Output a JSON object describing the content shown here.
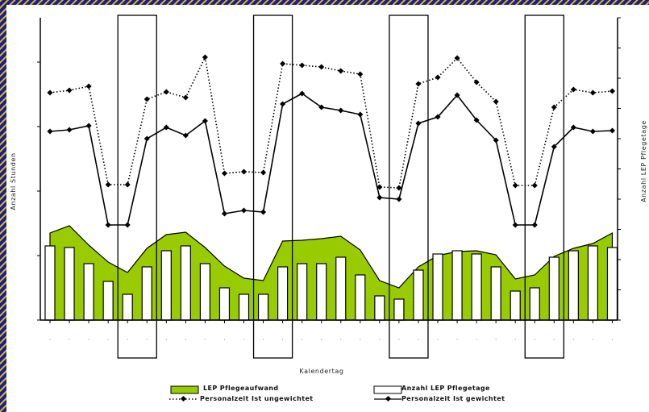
{
  "chart_data": {
    "type": "bar+area+line",
    "xlabel": "Kalendertag",
    "ylabel_left": "Anzahl Stunden",
    "ylabel_right": "Anzahl LEP Pflegetage",
    "x_tick_labels": "not legible",
    "days": 30,
    "weekend_pairs": [
      [
        4,
        5
      ],
      [
        11,
        12
      ],
      [
        18,
        19
      ],
      [
        25,
        26
      ]
    ],
    "series": [
      {
        "name": "LEP Pflegeaufwand",
        "type": "area",
        "color": "#99cc00",
        "values": [
          108,
          117,
          93,
          72,
          59,
          89,
          106,
          109,
          90,
          67,
          52,
          49,
          98,
          99,
          101,
          104,
          87,
          49,
          40,
          66,
          80,
          85,
          86,
          81,
          51,
          56,
          79,
          89,
          95,
          108
        ]
      },
      {
        "name": "Anzahl LEP Pflegetage",
        "type": "bar",
        "color": "#ffffff",
        "values": [
          92,
          90,
          70,
          48,
          32,
          66,
          86,
          92,
          70,
          40,
          32,
          32,
          66,
          70,
          70,
          78,
          56,
          30,
          26,
          62,
          82,
          86,
          82,
          66,
          36,
          40,
          78,
          86,
          92,
          90
        ]
      },
      {
        "name": "Personalzeit Ist ungewichtet",
        "type": "line",
        "style": "dotted",
        "color": "#000000",
        "values": [
          282,
          285,
          290,
          168,
          168,
          274,
          283,
          276,
          326,
          182,
          184,
          183,
          318,
          316,
          314,
          309,
          305,
          165,
          164,
          293,
          301,
          325,
          295,
          271,
          167,
          167,
          264,
          286,
          282,
          284
        ]
      },
      {
        "name": "Personalzeit Ist gewichtet",
        "type": "line",
        "style": "solid",
        "color": "#000000",
        "values": [
          234,
          236,
          241,
          118,
          118,
          225,
          239,
          229,
          247,
          132,
          136,
          134,
          268,
          281,
          264,
          260,
          255,
          152,
          150,
          244,
          252,
          279,
          248,
          223,
          118,
          118,
          215,
          239,
          234,
          235
        ]
      }
    ],
    "ylim_hours": [
      0,
      375
    ],
    "ylim_days": [
      0,
      375
    ]
  }
}
